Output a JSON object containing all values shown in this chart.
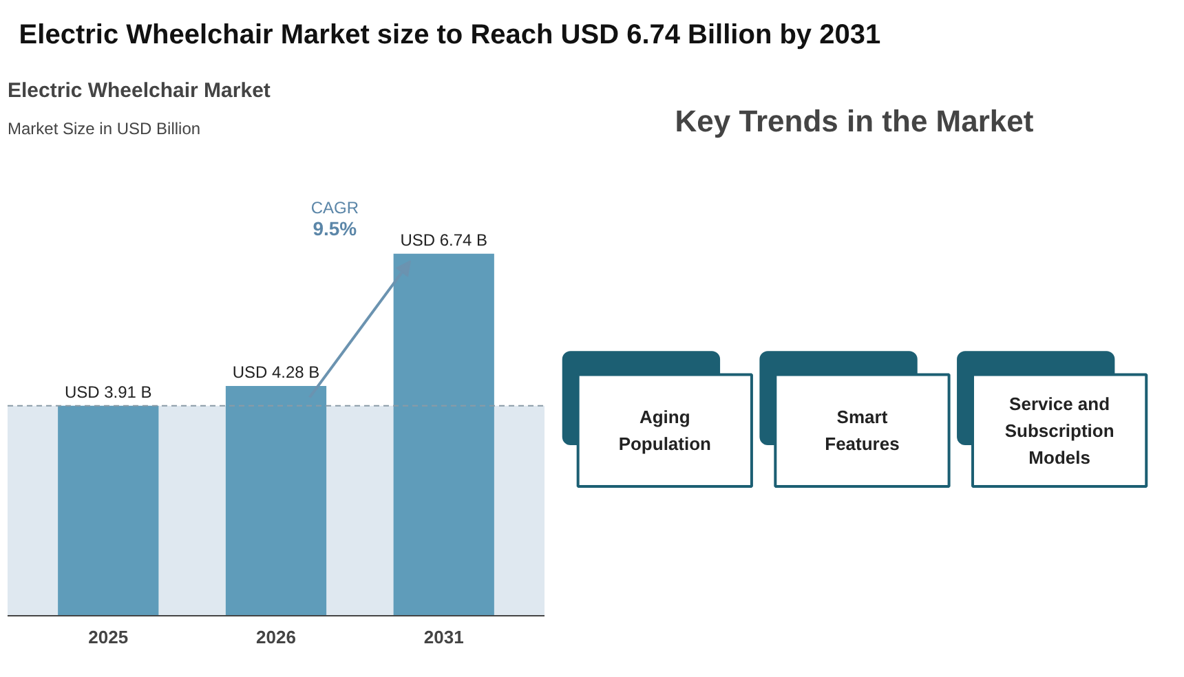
{
  "chart_data": [
    {
      "type": "other",
      "title": "Electric Wheelchair Market size to Reach USD 6.74 Billion by 2031"
    },
    {
      "type": "bar",
      "title": "Electric Wheelchair Market",
      "subtitle": "Market Size in USD Billion",
      "categories": [
        "2025",
        "2026",
        "2031"
      ],
      "values": [
        3.91,
        4.28,
        6.74
      ],
      "value_labels": [
        "USD 3.91 B",
        "USD 4.28 B",
        "USD 6.74 B"
      ],
      "color": "#5f9cba",
      "ref_lines": [
        {
          "axis": "y",
          "value": 3.91,
          "color": "#8a9aa6",
          "line_style": "dashed"
        }
      ],
      "bands": [
        {
          "axis": "y",
          "from": 0,
          "to": 3.91,
          "color": "#dfe8f0"
        }
      ],
      "annotations": [
        "CAGR",
        "9.5%"
      ],
      "grid": false
    },
    {
      "type": "other",
      "title": "Key Trends in the Market",
      "annotations": [
        "Aging Population",
        "Smart Features",
        "Service and Subscription Models"
      ]
    }
  ]
}
